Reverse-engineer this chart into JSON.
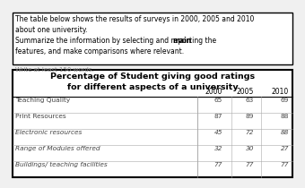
{
  "prompt_text_lines": [
    "The table below shows the results of surveys in 2000, 2005 and 2010",
    "about one university.",
    "Summarize the information by selecting and reporting the main",
    "features, and make comparisons where relevant."
  ],
  "write_note": "Write at least 150 words.",
  "table_title_line1": "Percentage of Student giving good ratings",
  "table_title_line2": "for different aspects of a university",
  "columns": [
    "",
    "2000",
    "2005",
    "2010"
  ],
  "rows": [
    [
      "Teaching Quality",
      "65",
      "63",
      "69"
    ],
    [
      "Print Resources",
      "87",
      "89",
      "88"
    ],
    [
      "Electronic resources",
      "45",
      "72",
      "88"
    ],
    [
      "Range of Modules offered",
      "32",
      "30",
      "27"
    ],
    [
      "Buildings/ teaching facilities",
      "77",
      "77",
      "77"
    ]
  ],
  "italic_rows": [
    2,
    3,
    4
  ],
  "fig_bg": "#f0f0f0",
  "prompt_bg": "#ffffff",
  "prompt_border": "#000000",
  "table_bg": "#ffffff",
  "table_border": "#000000",
  "row_text_color": "#444444",
  "write_note_color": "#888888",
  "bold_word_line": 2,
  "bold_word": "main",
  "bold_word_pre": "Summarize the information by selecting and reporting the "
}
